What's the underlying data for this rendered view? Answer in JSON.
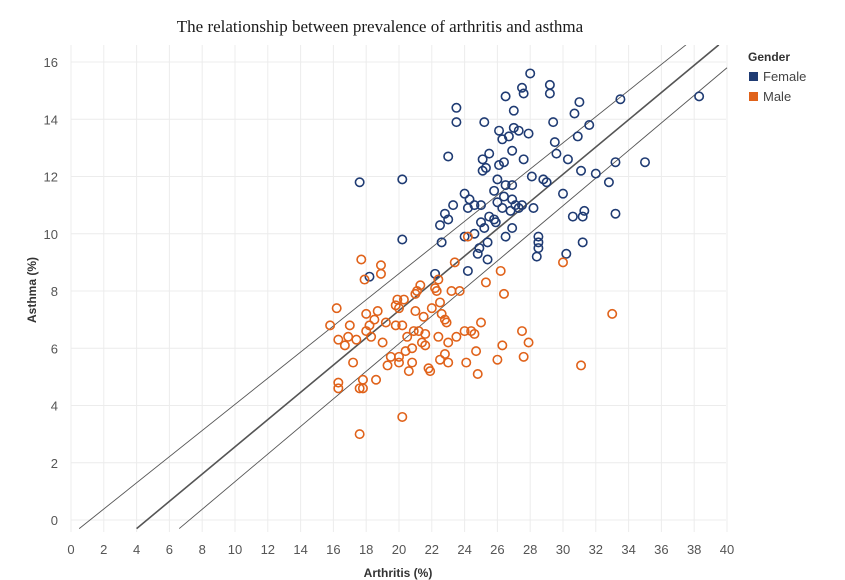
{
  "chart_data": {
    "type": "scatter",
    "title": "The relationship between prevalence of arthritis and asthma",
    "xlabel": "Arthritis (%)",
    "ylabel": "Asthma (%)",
    "xlim": [
      0,
      40
    ],
    "ylim": [
      0,
      16
    ],
    "xticks": [
      0,
      2,
      4,
      6,
      8,
      10,
      12,
      14,
      16,
      18,
      20,
      22,
      24,
      26,
      28,
      30,
      32,
      34,
      36,
      38,
      40
    ],
    "yticks": [
      0,
      2,
      4,
      6,
      8,
      10,
      12,
      14,
      16
    ],
    "grid": true,
    "legend": {
      "title": "Gender",
      "position": "top-right"
    },
    "colors": {
      "Female": "#1f3b73",
      "Male": "#e0621a",
      "trend": "#555555"
    },
    "trend": {
      "line": [
        [
          4.0,
          -0.3
        ],
        [
          39.5,
          16.6
        ]
      ],
      "upper_band": [
        [
          0.5,
          -0.3
        ],
        [
          37.5,
          16.6
        ]
      ],
      "lower_band": [
        [
          6.6,
          -0.3
        ],
        [
          40.0,
          15.8
        ]
      ]
    },
    "series": [
      {
        "name": "Female",
        "points": [
          [
            17.6,
            11.8
          ],
          [
            20.2,
            11.9
          ],
          [
            20.2,
            9.8
          ],
          [
            18.2,
            8.5
          ],
          [
            22.2,
            8.6
          ],
          [
            22.6,
            9.7
          ],
          [
            22.5,
            10.3
          ],
          [
            22.8,
            10.7
          ],
          [
            23.0,
            10.5
          ],
          [
            23.3,
            11.0
          ],
          [
            23.0,
            12.7
          ],
          [
            23.5,
            13.9
          ],
          [
            23.5,
            14.4
          ],
          [
            24.0,
            11.4
          ],
          [
            24.2,
            10.9
          ],
          [
            24.3,
            11.2
          ],
          [
            24.6,
            11.0
          ],
          [
            24.6,
            10.0
          ],
          [
            24.0,
            9.9
          ],
          [
            24.2,
            8.7
          ],
          [
            24.8,
            9.3
          ],
          [
            24.9,
            9.5
          ],
          [
            25.0,
            10.4
          ],
          [
            25.2,
            10.2
          ],
          [
            25.0,
            11.0
          ],
          [
            25.1,
            12.2
          ],
          [
            25.1,
            12.6
          ],
          [
            25.3,
            12.3
          ],
          [
            25.5,
            12.8
          ],
          [
            25.2,
            13.9
          ],
          [
            25.4,
            9.7
          ],
          [
            25.4,
            9.1
          ],
          [
            25.5,
            10.6
          ],
          [
            25.8,
            10.5
          ],
          [
            25.8,
            11.5
          ],
          [
            26.0,
            11.1
          ],
          [
            26.0,
            11.9
          ],
          [
            26.1,
            12.4
          ],
          [
            26.1,
            13.6
          ],
          [
            26.3,
            13.3
          ],
          [
            26.3,
            10.9
          ],
          [
            26.4,
            11.3
          ],
          [
            26.5,
            11.7
          ],
          [
            26.4,
            12.5
          ],
          [
            26.5,
            14.8
          ],
          [
            26.7,
            13.4
          ],
          [
            26.8,
            10.8
          ],
          [
            26.9,
            11.2
          ],
          [
            26.9,
            11.7
          ],
          [
            26.9,
            10.2
          ],
          [
            26.9,
            12.9
          ],
          [
            27.0,
            13.7
          ],
          [
            27.0,
            14.3
          ],
          [
            27.1,
            11.0
          ],
          [
            27.3,
            10.9
          ],
          [
            27.3,
            13.6
          ],
          [
            27.5,
            11.0
          ],
          [
            27.6,
            12.6
          ],
          [
            27.6,
            14.9
          ],
          [
            27.5,
            15.1
          ],
          [
            27.9,
            13.5
          ],
          [
            28.0,
            15.6
          ],
          [
            28.1,
            12.0
          ],
          [
            28.2,
            10.9
          ],
          [
            28.4,
            9.2
          ],
          [
            28.5,
            9.5
          ],
          [
            28.5,
            9.7
          ],
          [
            28.5,
            9.9
          ],
          [
            28.8,
            11.9
          ],
          [
            29.0,
            11.8
          ],
          [
            29.2,
            14.9
          ],
          [
            29.2,
            15.2
          ],
          [
            29.4,
            13.9
          ],
          [
            29.5,
            13.2
          ],
          [
            29.6,
            12.8
          ],
          [
            30.0,
            11.4
          ],
          [
            30.3,
            12.6
          ],
          [
            30.2,
            9.3
          ],
          [
            30.6,
            10.6
          ],
          [
            30.7,
            14.2
          ],
          [
            30.9,
            13.4
          ],
          [
            31.0,
            14.6
          ],
          [
            31.1,
            12.2
          ],
          [
            31.2,
            10.6
          ],
          [
            31.3,
            10.8
          ],
          [
            31.2,
            9.7
          ],
          [
            31.6,
            13.8
          ],
          [
            32.0,
            12.1
          ],
          [
            32.8,
            11.8
          ],
          [
            33.2,
            12.5
          ],
          [
            33.2,
            10.7
          ],
          [
            33.5,
            14.7
          ],
          [
            35.0,
            12.5
          ],
          [
            38.3,
            14.8
          ],
          [
            26.5,
            9.9
          ],
          [
            25.9,
            10.4
          ]
        ]
      },
      {
        "name": "Male",
        "points": [
          [
            15.8,
            6.8
          ],
          [
            16.2,
            7.4
          ],
          [
            16.3,
            6.3
          ],
          [
            16.3,
            4.8
          ],
          [
            16.3,
            4.6
          ],
          [
            16.7,
            6.1
          ],
          [
            16.9,
            6.4
          ],
          [
            17.0,
            6.8
          ],
          [
            17.2,
            5.5
          ],
          [
            17.4,
            6.3
          ],
          [
            17.6,
            3.0
          ],
          [
            17.6,
            4.6
          ],
          [
            17.8,
            4.6
          ],
          [
            17.8,
            4.9
          ],
          [
            17.7,
            9.1
          ],
          [
            17.9,
            8.4
          ],
          [
            18.0,
            7.2
          ],
          [
            18.0,
            6.6
          ],
          [
            18.2,
            6.8
          ],
          [
            18.3,
            6.4
          ],
          [
            18.5,
            7.0
          ],
          [
            18.7,
            7.3
          ],
          [
            18.6,
            4.9
          ],
          [
            18.9,
            8.9
          ],
          [
            18.9,
            8.6
          ],
          [
            19.0,
            6.2
          ],
          [
            19.3,
            5.4
          ],
          [
            19.5,
            5.7
          ],
          [
            19.8,
            6.8
          ],
          [
            19.8,
            7.5
          ],
          [
            19.9,
            7.7
          ],
          [
            20.0,
            7.4
          ],
          [
            20.0,
            5.5
          ],
          [
            20.0,
            5.7
          ],
          [
            20.2,
            6.8
          ],
          [
            20.3,
            7.7
          ],
          [
            20.4,
            5.9
          ],
          [
            20.2,
            3.6
          ],
          [
            20.5,
            6.4
          ],
          [
            20.6,
            5.2
          ],
          [
            20.8,
            5.5
          ],
          [
            20.8,
            6.0
          ],
          [
            20.9,
            6.6
          ],
          [
            21.0,
            7.3
          ],
          [
            21.0,
            7.9
          ],
          [
            21.1,
            8.0
          ],
          [
            21.3,
            8.2
          ],
          [
            21.2,
            6.6
          ],
          [
            21.4,
            6.2
          ],
          [
            21.6,
            6.5
          ],
          [
            21.6,
            6.1
          ],
          [
            21.8,
            5.3
          ],
          [
            21.9,
            5.2
          ],
          [
            22.0,
            7.4
          ],
          [
            22.2,
            8.1
          ],
          [
            22.3,
            8.0
          ],
          [
            22.4,
            8.4
          ],
          [
            22.5,
            7.6
          ],
          [
            22.4,
            6.4
          ],
          [
            22.5,
            5.6
          ],
          [
            22.6,
            7.2
          ],
          [
            22.8,
            7.0
          ],
          [
            22.9,
            6.9
          ],
          [
            22.8,
            5.8
          ],
          [
            23.0,
            5.5
          ],
          [
            23.0,
            6.2
          ],
          [
            23.2,
            8.0
          ],
          [
            23.4,
            9.0
          ],
          [
            23.5,
            6.4
          ],
          [
            23.7,
            8.0
          ],
          [
            24.0,
            6.6
          ],
          [
            24.1,
            5.5
          ],
          [
            24.2,
            9.9
          ],
          [
            24.4,
            6.6
          ],
          [
            24.6,
            6.5
          ],
          [
            24.7,
            5.9
          ],
          [
            24.8,
            5.1
          ],
          [
            25.0,
            6.9
          ],
          [
            25.3,
            8.3
          ],
          [
            26.0,
            5.6
          ],
          [
            26.2,
            8.7
          ],
          [
            26.3,
            6.1
          ],
          [
            26.4,
            7.9
          ],
          [
            27.5,
            6.6
          ],
          [
            27.6,
            5.7
          ],
          [
            27.9,
            6.2
          ],
          [
            30.0,
            9.0
          ],
          [
            31.1,
            5.4
          ],
          [
            33.0,
            7.2
          ],
          [
            21.5,
            7.1
          ],
          [
            19.2,
            6.9
          ]
        ]
      }
    ]
  }
}
